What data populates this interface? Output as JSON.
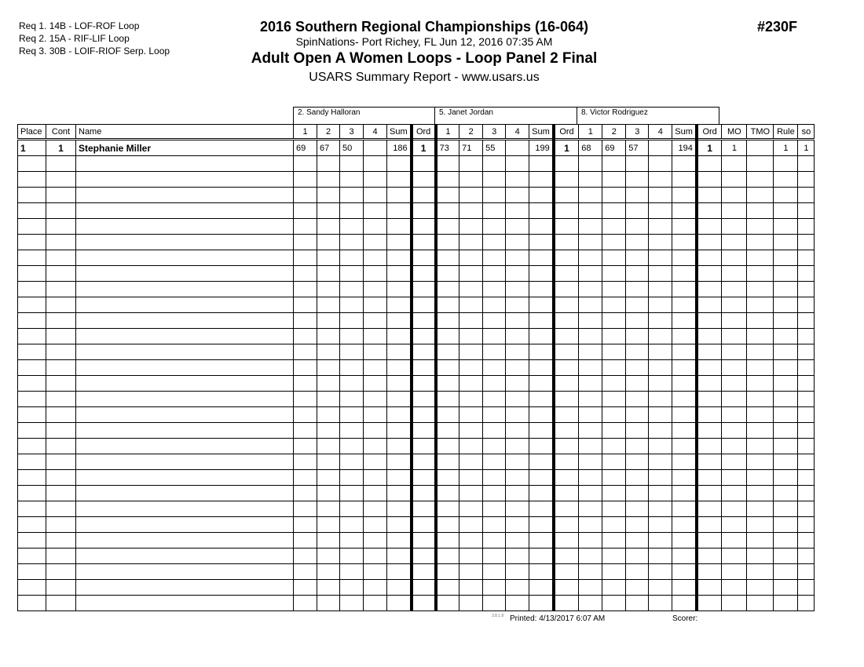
{
  "requirements": [
    "Req  1.  14B - LOF-ROF Loop",
    "Req  2.  15A - RIF-LIF Loop",
    "Req  3.  30B - LOIF-RIOF Serp. Loop"
  ],
  "title": "2016 Southern Regional Championships (16-064)",
  "venue": "SpinNations- Port Richey, FL  Jun 12, 2016  07:35 AM",
  "event": "Adult Open A Women Loops - Loop Panel 2 Final",
  "report": "USARS Summary Report - www.usars.us",
  "event_number": "#230F",
  "judges": [
    "2.  Sandy Halloran",
    "5.  Janet Jordan",
    "8.  Victor Rodriguez"
  ],
  "columns": {
    "place": "Place",
    "cont": "Cont",
    "name": "Name",
    "marks": [
      "1",
      "2",
      "3",
      "4"
    ],
    "sum": "Sum",
    "ord": "Ord",
    "mo": "MO",
    "tmo": "TMO",
    "rule": "Rule",
    "so": "so"
  },
  "rows": [
    {
      "place": "1",
      "cont": "1",
      "name": "Stephanie Miller",
      "judges": [
        {
          "marks": [
            "69",
            "67",
            "50",
            ""
          ],
          "sum": "186",
          "ord": "1"
        },
        {
          "marks": [
            "73",
            "71",
            "55",
            ""
          ],
          "sum": "199",
          "ord": "1"
        },
        {
          "marks": [
            "68",
            "69",
            "57",
            ""
          ],
          "sum": "194",
          "ord": "1"
        }
      ],
      "mo": "1",
      "tmo": "",
      "rule": "1",
      "so": "1"
    }
  ],
  "footer": {
    "version": "3.8.1.8",
    "printed": "Printed:  4/13/2017  6:07 AM",
    "scorer": "Scorer:"
  }
}
